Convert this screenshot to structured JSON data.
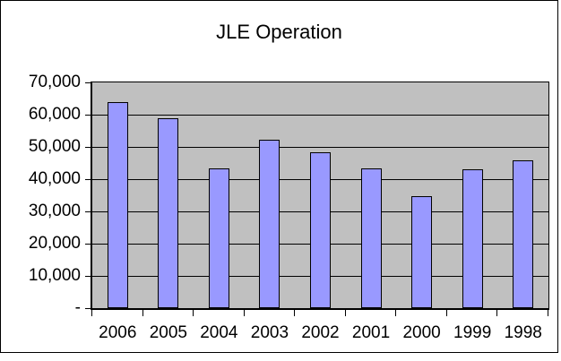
{
  "window": {
    "background": "#FFFFFF",
    "frame_border_color": "#000000"
  },
  "chart_data": {
    "type": "bar",
    "title": "JLE Operation",
    "categories": [
      "2006",
      "2005",
      "2004",
      "2003",
      "2002",
      "2001",
      "2000",
      "1999",
      "1998"
    ],
    "values": [
      64000,
      59000,
      43400,
      52300,
      48400,
      43400,
      34700,
      43000,
      45900
    ],
    "xlabel": "",
    "ylabel": "",
    "ylim": [
      0,
      70000
    ],
    "ytick_interval": 10000,
    "ytick_labels": [
      "70,000",
      "60,000",
      "50,000",
      "40,000",
      "30,000",
      "20,000",
      "10,000",
      "-"
    ],
    "grid": "horizontal",
    "legend": "none",
    "colors": {
      "bar_fill": "#9999FF",
      "bar_border": "#000000",
      "plot_background": "#C0C0C0",
      "gridline": "#000000",
      "axis": "#000000",
      "text": "#000000"
    }
  }
}
